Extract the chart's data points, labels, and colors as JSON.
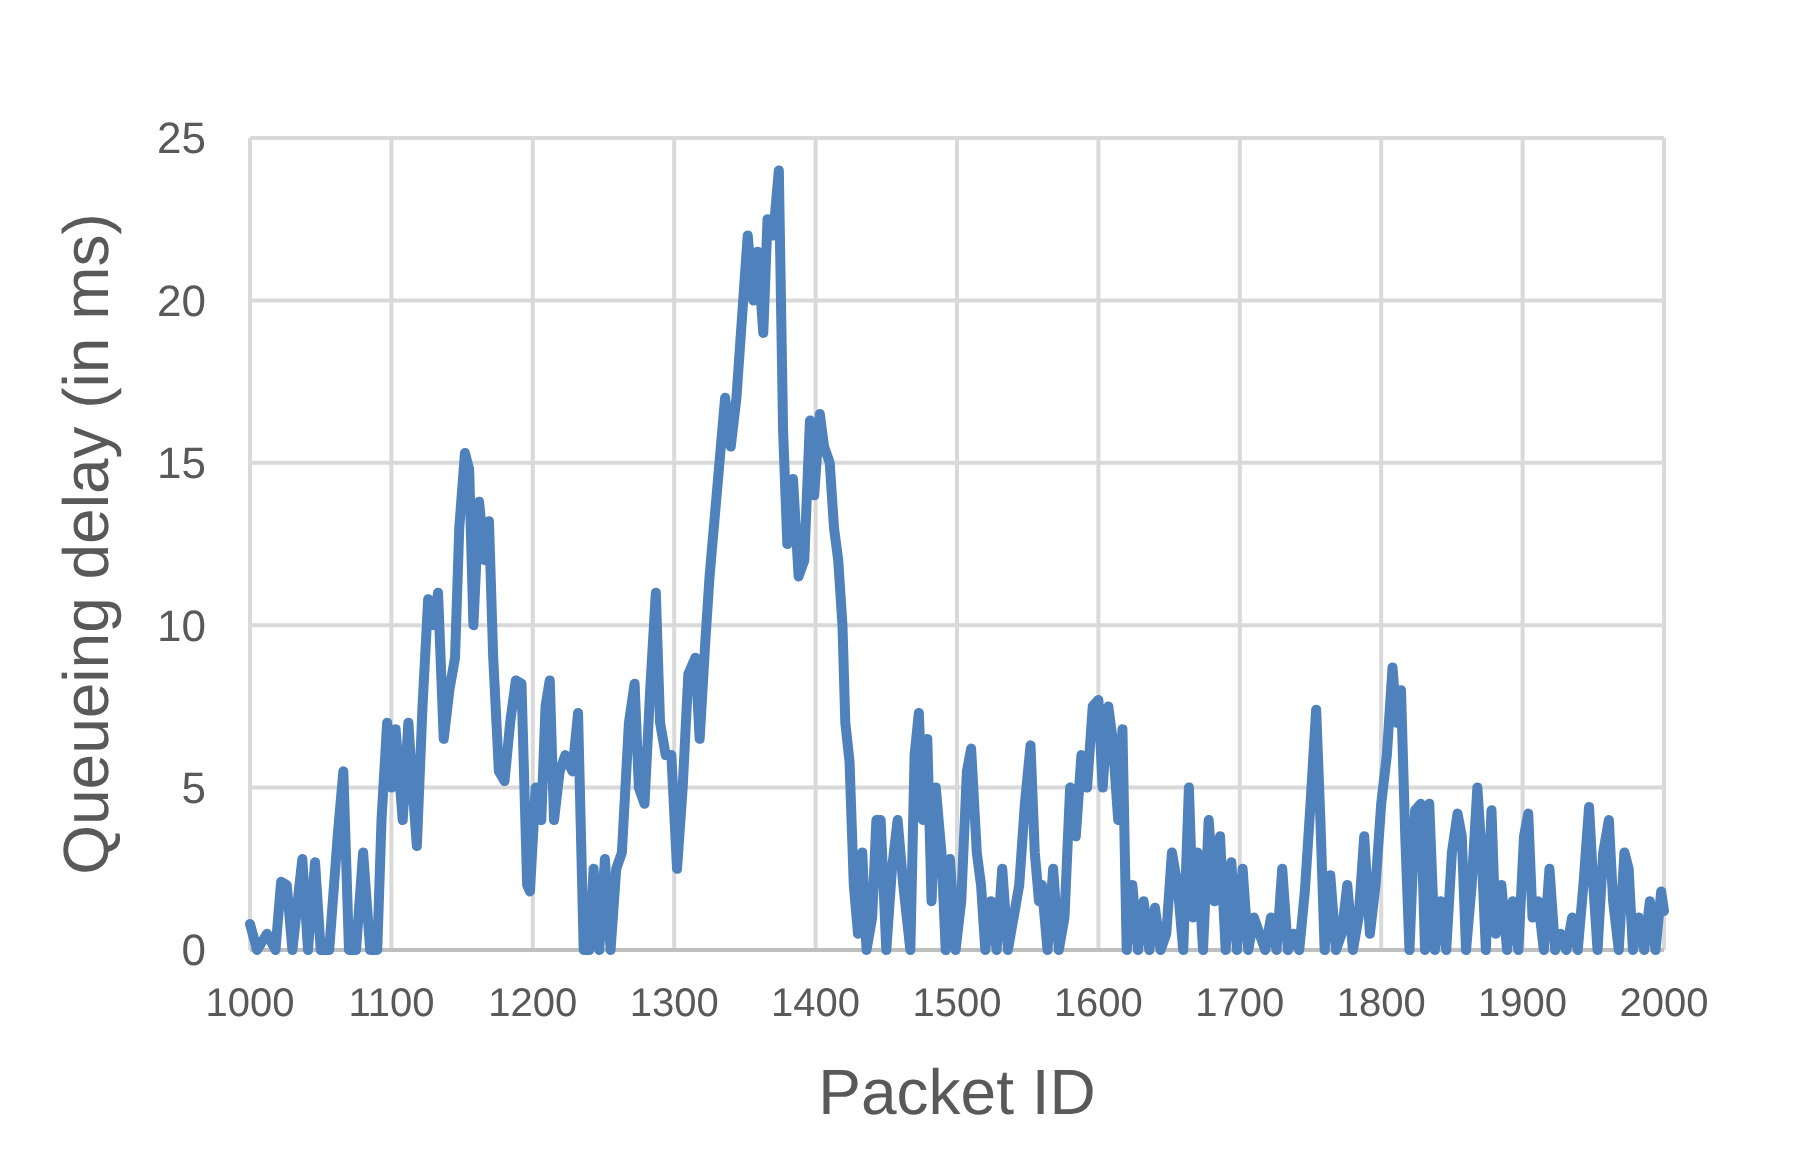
{
  "chart_data": {
    "type": "line",
    "xlabel": "Packet ID",
    "ylabel": "Queueing delay (in ms)",
    "xlim": [
      1000,
      2000
    ],
    "xticks": [
      1000,
      1100,
      1200,
      1300,
      1400,
      1500,
      1600,
      1700,
      1800,
      1900,
      2000
    ],
    "ylim": [
      0,
      25
    ],
    "yticks": [
      0,
      5,
      10,
      15,
      20,
      25
    ],
    "grid": true,
    "marker": "none",
    "line_style": "solid",
    "series": [
      {
        "color": "#4f81bd",
        "x": [
          1000,
          1005,
          1012,
          1018,
          1022,
          1026,
          1030,
          1037,
          1041,
          1046,
          1050,
          1056,
          1062,
          1066,
          1070,
          1075,
          1080,
          1085,
          1090,
          1093,
          1097,
          1100,
          1103,
          1108,
          1112,
          1115,
          1118,
          1122,
          1126,
          1130,
          1133,
          1137,
          1141,
          1145,
          1148,
          1152,
          1155,
          1158,
          1162,
          1166,
          1169,
          1172,
          1176,
          1180,
          1184,
          1188,
          1192,
          1196,
          1198,
          1202,
          1206,
          1209,
          1212,
          1215,
          1219,
          1223,
          1228,
          1232,
          1236,
          1240,
          1243,
          1247,
          1251,
          1255,
          1259,
          1263,
          1268,
          1272,
          1275,
          1279,
          1283,
          1287,
          1290,
          1294,
          1298,
          1302,
          1306,
          1310,
          1315,
          1318,
          1322,
          1325,
          1328,
          1332,
          1336,
          1340,
          1344,
          1348,
          1352,
          1356,
          1359,
          1363,
          1366,
          1370,
          1374,
          1377,
          1380,
          1384,
          1388,
          1392,
          1396,
          1399,
          1403,
          1406,
          1410,
          1413,
          1416,
          1419,
          1421,
          1424,
          1427,
          1430,
          1433,
          1436,
          1440,
          1443,
          1446,
          1450,
          1454,
          1458,
          1462,
          1467,
          1470,
          1473,
          1476,
          1479,
          1482,
          1485,
          1489,
          1492,
          1495,
          1499,
          1503,
          1507,
          1510,
          1514,
          1517,
          1520,
          1524,
          1528,
          1532,
          1536,
          1540,
          1544,
          1548,
          1552,
          1555,
          1558,
          1560,
          1564,
          1568,
          1572,
          1576,
          1580,
          1584,
          1588,
          1592,
          1596,
          1600,
          1603,
          1607,
          1610,
          1614,
          1617,
          1620,
          1624,
          1628,
          1632,
          1636,
          1640,
          1644,
          1648,
          1652,
          1656,
          1660,
          1664,
          1667,
          1670,
          1674,
          1678,
          1682,
          1686,
          1690,
          1694,
          1698,
          1702,
          1706,
          1710,
          1714,
          1718,
          1722,
          1726,
          1730,
          1734,
          1738,
          1742,
          1746,
          1750,
          1754,
          1757,
          1760,
          1764,
          1768,
          1772,
          1776,
          1780,
          1784,
          1788,
          1792,
          1796,
          1800,
          1804,
          1808,
          1811,
          1814,
          1817,
          1820,
          1824,
          1828,
          1831,
          1834,
          1838,
          1842,
          1846,
          1850,
          1854,
          1857,
          1860,
          1864,
          1868,
          1871,
          1874,
          1878,
          1881,
          1885,
          1889,
          1893,
          1897,
          1901,
          1904,
          1907,
          1911,
          1915,
          1919,
          1923,
          1927,
          1931,
          1935,
          1939,
          1943,
          1947,
          1950,
          1953,
          1957,
          1961,
          1964,
          1968,
          1972,
          1975,
          1978,
          1982,
          1986,
          1990,
          1994,
          1998,
          2000
        ],
        "values": [
          0.8,
          0,
          0.5,
          0,
          2.1,
          2,
          0,
          2.8,
          0,
          2.7,
          0,
          0,
          3.5,
          5.5,
          0,
          0,
          3,
          0,
          0,
          4,
          7,
          5,
          6.8,
          4,
          7,
          5,
          3.2,
          7.5,
          10.8,
          10,
          11,
          6.5,
          8,
          9,
          13,
          15.3,
          14.8,
          10,
          13.8,
          12,
          13.2,
          9,
          5.5,
          5.2,
          7,
          8.3,
          8.2,
          2,
          1.8,
          5,
          4,
          7.5,
          8.3,
          4,
          5.5,
          6,
          5.5,
          7.3,
          0,
          0,
          2.5,
          0,
          2.8,
          0,
          2.5,
          3,
          7,
          8.2,
          5,
          4.5,
          8,
          11,
          7,
          6,
          6,
          2.5,
          5,
          8.5,
          9,
          6.5,
          9.5,
          11.5,
          13,
          15,
          17,
          15.5,
          17,
          19.5,
          22,
          20,
          21.5,
          19,
          22.5,
          22,
          24,
          16,
          12.5,
          14.5,
          11.5,
          12,
          16.3,
          14,
          16.5,
          15.5,
          15,
          13,
          12,
          10,
          7,
          5.8,
          2,
          0.5,
          3,
          0,
          1,
          4,
          4,
          0,
          2.5,
          4,
          2,
          0,
          6,
          7.3,
          4,
          6.5,
          1.5,
          5,
          3,
          0,
          2.8,
          0,
          1.5,
          5.5,
          6.2,
          3,
          2,
          0,
          1.5,
          0,
          2.5,
          0,
          1,
          2,
          4.5,
          6.3,
          3,
          1.5,
          2,
          0,
          2.5,
          0,
          1,
          5,
          3.5,
          6,
          5,
          7.5,
          7.7,
          5,
          7.5,
          6.5,
          4,
          6.8,
          0,
          2,
          0,
          1.5,
          0,
          1.3,
          0,
          0.5,
          3,
          2,
          0,
          5,
          1,
          3,
          0,
          4,
          1.5,
          3.5,
          0,
          2.7,
          0,
          2.5,
          0,
          1,
          0.5,
          0,
          1,
          0,
          2.5,
          0,
          0.5,
          0,
          1.8,
          4.5,
          7.4,
          4,
          0,
          2.3,
          0,
          0.5,
          2,
          0,
          1,
          3.5,
          0.5,
          2,
          4.5,
          6,
          8.7,
          7,
          8,
          3.5,
          0,
          4.3,
          4.5,
          0,
          4.5,
          0,
          1.5,
          0,
          3,
          4.2,
          3.5,
          0,
          2,
          5,
          3,
          0,
          4.3,
          0.5,
          2,
          0,
          1.5,
          0,
          3.5,
          4.2,
          1,
          1.5,
          0,
          2.5,
          0,
          0.5,
          0,
          1,
          0,
          2,
          4.4,
          2,
          0,
          3,
          4,
          1.5,
          0,
          3,
          2.5,
          0,
          1,
          0,
          1.5,
          0,
          1.8,
          1.2
        ]
      }
    ]
  }
}
